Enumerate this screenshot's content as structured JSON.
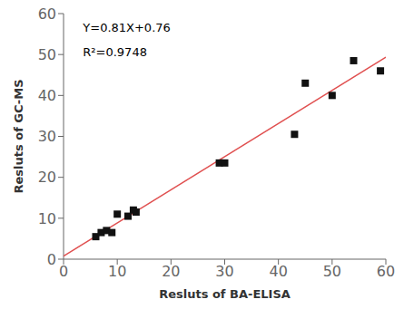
{
  "chart_data": {
    "type": "scatter",
    "xlabel": "Resluts of BA-ELISA",
    "ylabel": "Resluts of GC-MS",
    "annotations": [
      "Y=0.81X+0.76",
      "R²=0.9748"
    ],
    "series": [
      {
        "type": "line",
        "color": "#e05050",
        "x": [
          0,
          60
        ],
        "values": [
          0.76,
          49.36
        ]
      },
      {
        "type": "scatter",
        "color": "#111111",
        "marker": "square",
        "x": [
          6,
          7,
          8,
          9,
          10,
          12,
          13,
          13.5,
          29,
          30,
          43,
          45,
          50,
          54,
          59
        ],
        "values": [
          5.5,
          6.5,
          7,
          6.5,
          11,
          10.5,
          12,
          11.5,
          23.5,
          23.5,
          30.5,
          43,
          40,
          48.5,
          46
        ]
      }
    ],
    "xlim": [
      0,
      60
    ],
    "ylim": [
      0,
      60
    ],
    "xticks": [
      0,
      10,
      20,
      30,
      40,
      50,
      60
    ],
    "yticks": [
      0,
      10,
      20,
      30,
      40,
      50,
      60
    ],
    "grid": false
  }
}
